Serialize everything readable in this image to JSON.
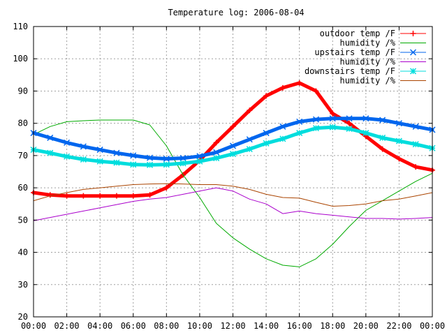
{
  "chart_data": {
    "type": "line",
    "title": "Temperature log: 2006-08-04",
    "xlabel": "",
    "ylabel": "",
    "xlim": [
      0,
      24
    ],
    "ylim": [
      20,
      110
    ],
    "grid": true,
    "legend_position": "top-right",
    "x_ticks": [
      "00:00",
      "02:00",
      "04:00",
      "06:00",
      "08:00",
      "10:00",
      "12:00",
      "14:00",
      "16:00",
      "18:00",
      "20:00",
      "22:00",
      "00:00"
    ],
    "y_ticks": [
      "20",
      "30",
      "40",
      "50",
      "60",
      "70",
      "80",
      "90",
      "100",
      "110"
    ],
    "x": [
      0,
      1,
      2,
      3,
      4,
      5,
      6,
      7,
      8,
      9,
      10,
      11,
      12,
      13,
      14,
      15,
      16,
      17,
      18,
      19,
      20,
      21,
      22,
      23,
      24
    ],
    "series": [
      {
        "name": "outdoor temp /F",
        "color": "#ff0000",
        "marker": "plus",
        "width": 5,
        "values": [
          58.5,
          57.8,
          57.5,
          57.5,
          57.5,
          57.5,
          57.5,
          57.8,
          60,
          64,
          68.5,
          74,
          79,
          84,
          88.5,
          91,
          92.5,
          90,
          83,
          80,
          76,
          72,
          69,
          66.5,
          65.5
        ]
      },
      {
        "name": "humidity /%",
        "color": "#00aa00",
        "marker": "none",
        "width": 1,
        "values": [
          76.5,
          79,
          80.5,
          80.8,
          81,
          81,
          81,
          79.5,
          73,
          64,
          57,
          49,
          44.5,
          41,
          38,
          36,
          35.5,
          38,
          42.5,
          48,
          53,
          56,
          59,
          62,
          64.5
        ]
      },
      {
        "name": "upstairs temp /F",
        "color": "#0066ee",
        "marker": "cross",
        "width": 5,
        "values": [
          77,
          75.5,
          74,
          72.8,
          71.8,
          70.8,
          70,
          69.3,
          69,
          69.2,
          69.8,
          71,
          73,
          75,
          77,
          79,
          80.5,
          81.2,
          81.5,
          81.5,
          81.5,
          81,
          80,
          79,
          78
        ]
      },
      {
        "name": "humidity /%",
        "color": "#aa00cc",
        "marker": "none",
        "width": 1,
        "values": [
          49.8,
          50.8,
          51.8,
          52.8,
          53.8,
          54.8,
          55.8,
          56.5,
          57,
          58,
          59,
          60,
          59,
          56.5,
          55,
          52,
          52.8,
          52,
          51.5,
          51,
          50.5,
          50.5,
          50.3,
          50.5,
          50.8
        ]
      },
      {
        "name": "downstairs temp /F",
        "color": "#00dddd",
        "marker": "star",
        "width": 5,
        "values": [
          71.8,
          70.8,
          69.7,
          68.8,
          68.2,
          67.8,
          67.2,
          67.1,
          67.2,
          67.6,
          68.2,
          69.2,
          70.5,
          72,
          73.8,
          75.2,
          77,
          78.5,
          78.8,
          78.3,
          77,
          75.5,
          74.5,
          73.5,
          72.3
        ]
      },
      {
        "name": "humidity /%",
        "color": "#aa4400",
        "marker": "none",
        "width": 1,
        "values": [
          56,
          57.5,
          58.5,
          59.5,
          60,
          60.5,
          61,
          61.2,
          61.3,
          61.2,
          61,
          61,
          60.5,
          59.5,
          58,
          57,
          56.8,
          55.5,
          54.3,
          54.5,
          55,
          56,
          56.5,
          57.5,
          58.5
        ]
      }
    ]
  }
}
